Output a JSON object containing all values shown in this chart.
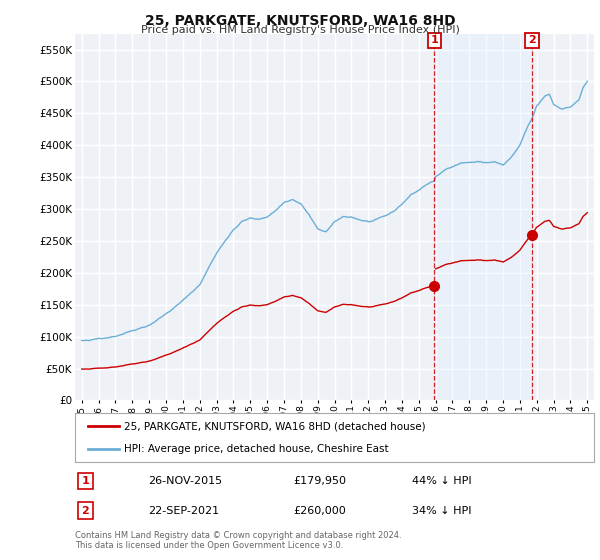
{
  "title": "25, PARKGATE, KNUTSFORD, WA16 8HD",
  "subtitle": "Price paid vs. HM Land Registry's House Price Index (HPI)",
  "ylim": [
    0,
    575000
  ],
  "yticks": [
    0,
    50000,
    100000,
    150000,
    200000,
    250000,
    300000,
    350000,
    400000,
    450000,
    500000,
    550000
  ],
  "background_color": "#ffffff",
  "plot_bg_color": "#eef2f7",
  "grid_color": "#ffffff",
  "hpi_color": "#6baed6",
  "price_color": "#cc0000",
  "vline_color": "#cc0000",
  "shade_color": "#ddeeff",
  "legend_label_price": "25, PARKGATE, KNUTSFORD, WA16 8HD (detached house)",
  "legend_label_hpi": "HPI: Average price, detached house, Cheshire East",
  "sale1_date": "26-NOV-2015",
  "sale1_price": "£179,950",
  "sale1_pct": "44% ↓ HPI",
  "sale2_date": "22-SEP-2021",
  "sale2_price": "£260,000",
  "sale2_pct": "34% ↓ HPI",
  "vline1_x": 2015.917,
  "vline2_x": 2021.722,
  "price_paid_years": [
    2015.917,
    2021.722
  ],
  "price_paid_values": [
    179950,
    260000
  ],
  "footnote": "Contains HM Land Registry data © Crown copyright and database right 2024.\nThis data is licensed under the Open Government Licence v3.0.",
  "xtick_years": [
    1995,
    1996,
    1997,
    1998,
    1999,
    2000,
    2001,
    2002,
    2003,
    2004,
    2005,
    2006,
    2007,
    2008,
    2009,
    2010,
    2011,
    2012,
    2013,
    2014,
    2015,
    2016,
    2017,
    2018,
    2019,
    2020,
    2021,
    2022,
    2023,
    2024,
    2025
  ]
}
